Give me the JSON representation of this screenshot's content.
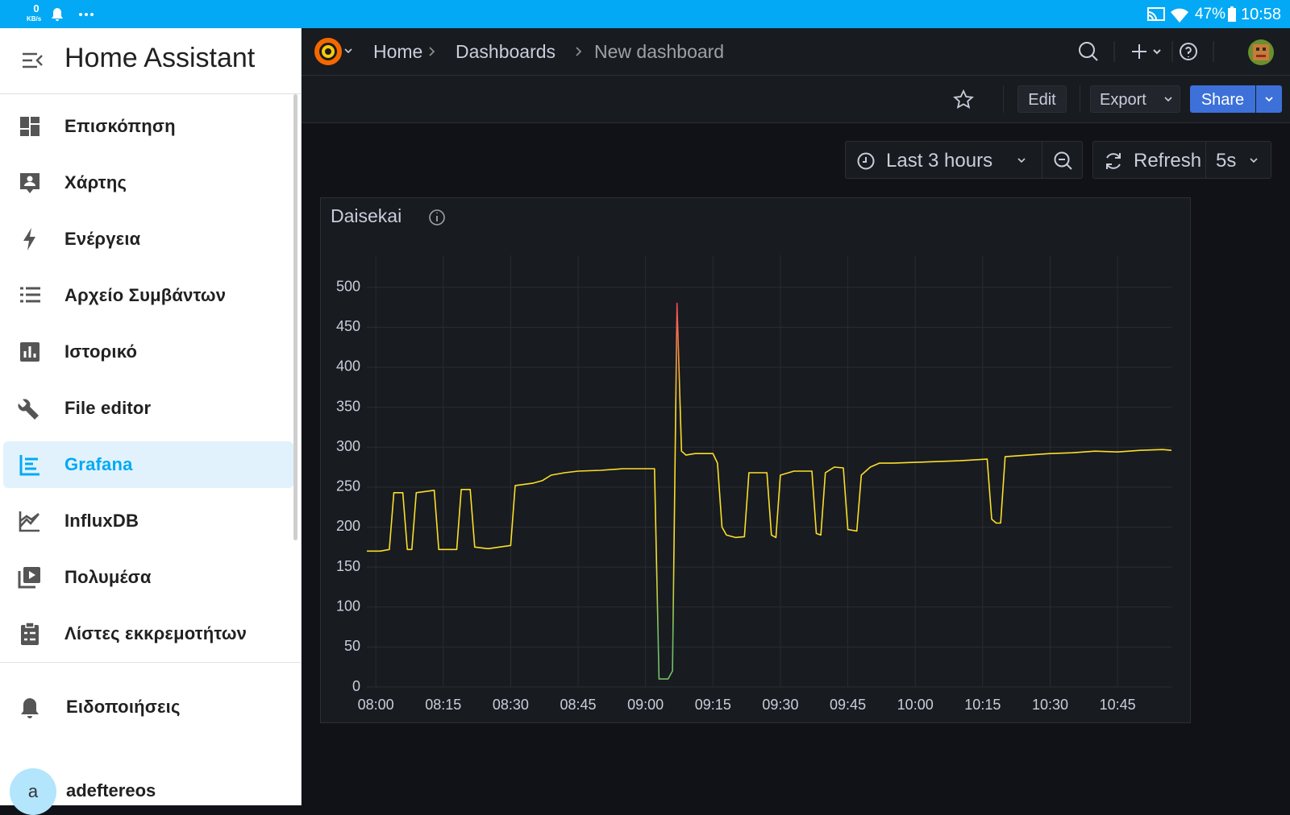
{
  "status_bar": {
    "network_speed": "0",
    "network_unit": "KB/s",
    "battery": "47%",
    "time": "10:58"
  },
  "sidebar": {
    "title": "Home Assistant",
    "items": [
      {
        "label": "Επισκόπηση"
      },
      {
        "label": "Χάρτης"
      },
      {
        "label": "Ενέργεια"
      },
      {
        "label": "Αρχείο Συμβάντων"
      },
      {
        "label": "Ιστορικό"
      },
      {
        "label": "File editor"
      },
      {
        "label": "Grafana",
        "selected": true
      },
      {
        "label": "InfluxDB"
      },
      {
        "label": "Πολυμέσα"
      },
      {
        "label": "Λίστες εκκρεμοτήτων"
      }
    ],
    "notifications": "Ειδοποιήσεις",
    "user": {
      "initial": "a",
      "name": "adeftereos"
    }
  },
  "breadcrumbs": [
    "Home",
    "Dashboards",
    "New dashboard"
  ],
  "toolbar": {
    "edit": "Edit",
    "export": "Export",
    "share": "Share"
  },
  "time_picker": {
    "range": "Last 3 hours",
    "refresh": "Refresh",
    "interval": "5s"
  },
  "chart_data": {
    "type": "line",
    "title": "Daisekai",
    "x": [
      "07:58",
      "08:01",
      "08:03",
      "08:04",
      "08:06",
      "08:07",
      "08:08",
      "08:09",
      "08:13",
      "08:14",
      "08:18",
      "08:19",
      "08:21",
      "08:22",
      "08:25",
      "08:30",
      "08:31",
      "08:35",
      "08:37",
      "08:39",
      "08:42",
      "08:45",
      "08:50",
      "08:55",
      "09:00",
      "09:02",
      "09:03",
      "09:05",
      "09:06",
      "09:07",
      "09:08",
      "09:09",
      "09:11",
      "09:15",
      "09:16",
      "09:17",
      "09:18",
      "09:20",
      "09:22",
      "09:23",
      "09:27",
      "09:28",
      "09:29",
      "09:30",
      "09:33",
      "09:37",
      "09:38",
      "09:39",
      "09:40",
      "09:42",
      "09:44",
      "09:45",
      "09:47",
      "09:48",
      "09:50",
      "09:52",
      "09:55",
      "10:00",
      "10:05",
      "10:10",
      "10:16",
      "10:17",
      "10:18",
      "10:19",
      "10:20",
      "10:25",
      "10:30",
      "10:35",
      "10:40",
      "10:45",
      "10:50",
      "10:55",
      "10:57"
    ],
    "values": [
      170,
      170,
      172,
      243,
      243,
      172,
      172,
      243,
      246,
      172,
      172,
      247,
      247,
      175,
      173,
      177,
      252,
      255,
      258,
      265,
      268,
      270,
      271,
      273,
      273,
      273,
      10,
      10,
      20,
      480,
      295,
      290,
      292,
      292,
      280,
      200,
      190,
      187,
      188,
      268,
      268,
      190,
      187,
      265,
      270,
      270,
      192,
      190,
      268,
      275,
      274,
      197,
      195,
      265,
      275,
      280,
      280,
      281,
      282,
      283,
      285,
      210,
      205,
      205,
      288,
      290,
      292,
      293,
      295,
      294,
      296,
      297,
      296
    ],
    "color": "#fade2a",
    "color_scale": [
      "#73bf69",
      "#fade2a",
      "#f2495c"
    ],
    "xlim": [
      "07:58",
      "10:57"
    ],
    "xticks": [
      "08:00",
      "08:15",
      "08:30",
      "08:45",
      "09:00",
      "09:15",
      "09:30",
      "09:45",
      "10:00",
      "10:15",
      "10:30",
      "10:45"
    ],
    "ylim": [
      0,
      540
    ],
    "yticks": [
      0,
      50,
      100,
      150,
      200,
      250,
      300,
      350,
      400,
      450,
      500
    ],
    "grid": true
  }
}
